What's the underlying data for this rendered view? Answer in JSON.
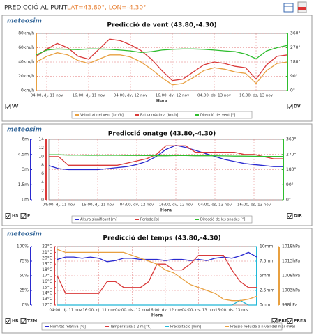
{
  "header": {
    "title": "PREDICCIÓ AL PUNT",
    "coords": "LAT=43.80°, LON=-4.30°"
  },
  "chart_data": [
    {
      "type": "line",
      "brand": "meteosim",
      "title": "Predicció de vent (43.80,-4.30)",
      "xlabel": "Hora",
      "grid": true,
      "toggles": {
        "left": [
          "VV"
        ],
        "right": [
          "DV"
        ]
      },
      "categories": [
        null,
        "04:00, dj, 11 nov",
        null,
        null,
        null,
        "16:00, dj, 11 nov",
        null,
        null,
        null,
        "04:00, dv, 12 nov",
        null,
        null,
        null,
        "16:00, dv, 12 nov",
        null,
        null,
        null,
        "04:00, ds, 13 nov",
        null,
        null,
        null,
        "16:00, ds, 13 nov",
        null,
        null,
        null
      ],
      "axes": [
        {
          "side": "left",
          "color": "#e8a040",
          "lim": [
            0,
            80
          ],
          "ticks": [
            {
              "value": 0,
              "label": "0km/h"
            },
            {
              "value": 20,
              "label": "20km/h"
            },
            {
              "value": 40,
              "label": "40km/h"
            },
            {
              "value": 60,
              "label": "60km/h"
            },
            {
              "value": 80,
              "label": "80km/h"
            }
          ]
        },
        {
          "side": "right",
          "color": "#2ebd2e",
          "lim": [
            0,
            360
          ],
          "ticks": [
            {
              "value": 0,
              "label": "0°"
            },
            {
              "value": 90,
              "label": "90°"
            },
            {
              "value": 180,
              "label": "180°"
            },
            {
              "value": 270,
              "label": "270°"
            },
            {
              "value": 360,
              "label": "360°"
            }
          ]
        }
      ],
      "series": [
        {
          "name": "Velocitat del vent [km/h]",
          "color": "#e8a040",
          "axis": 0,
          "values": [
            40,
            48,
            53,
            50,
            42,
            38,
            44,
            50,
            50,
            47,
            40,
            30,
            18,
            8,
            10,
            18,
            28,
            32,
            30,
            26,
            24,
            10,
            28,
            38,
            40
          ]
        },
        {
          "name": "Ratxa màxima [km/h]",
          "color": "#d93a3a",
          "axis": 0,
          "values": [
            48,
            58,
            66,
            60,
            48,
            44,
            58,
            72,
            70,
            64,
            56,
            44,
            28,
            14,
            16,
            26,
            36,
            40,
            38,
            34,
            32,
            16,
            36,
            48,
            50
          ]
        },
        {
          "name": "Direcció del vent [°]",
          "color": "#2ebd2e",
          "axis": 1,
          "values": [
            225,
            255,
            262,
            260,
            258,
            262,
            262,
            260,
            255,
            250,
            240,
            245,
            255,
            260,
            262,
            262,
            260,
            255,
            250,
            245,
            230,
            200,
            250,
            270,
            285
          ]
        }
      ]
    },
    {
      "type": "line",
      "brand": "meteosim",
      "title": "Predicció onatge (43.80,-4.30)",
      "xlabel": "Hora",
      "grid": true,
      "toggles": {
        "left": [
          "HS",
          "P"
        ],
        "right": [
          "DIR"
        ]
      },
      "categories": [
        null,
        "04:00, dj, 11 nov",
        null,
        null,
        null,
        "16:00, dj, 11 nov",
        null,
        null,
        null,
        "04:00, dv, 12 nov",
        null,
        null,
        null,
        "16:00, dv, 12 nov",
        null,
        null,
        null,
        "04:00, ds, 13 nov",
        null,
        null,
        null,
        "16:00, ds, 13 nov",
        null,
        null,
        null
      ],
      "axes": [
        {
          "side": "left",
          "color": "#2a2ad0",
          "lim": [
            0,
            6
          ],
          "ticks": [
            {
              "value": 0,
              "label": "0m"
            },
            {
              "value": 1.5,
              "label": "1.5m"
            },
            {
              "value": 3,
              "label": "3m"
            },
            {
              "value": 4.5,
              "label": "4.5m"
            },
            {
              "value": 6,
              "label": "6m"
            }
          ]
        },
        {
          "side": "left",
          "color": "#d93a3a",
          "lim": [
            0,
            14
          ],
          "ticks": [
            0,
            2,
            4,
            6,
            8,
            10,
            12,
            14
          ]
        },
        {
          "side": "right",
          "color": "#2ebd2e",
          "lim": [
            0,
            360
          ],
          "ticks": [
            {
              "value": 0,
              "label": "0°"
            },
            {
              "value": 90,
              "label": "90°"
            },
            {
              "value": 180,
              "label": "180°"
            },
            {
              "value": 270,
              "label": "270°"
            },
            {
              "value": 360,
              "label": "360°"
            }
          ]
        }
      ],
      "series": [
        {
          "name": "Altura significant [m]",
          "color": "#2a2ad0",
          "axis": 0,
          "values": [
            3.4,
            3.1,
            3.0,
            3.0,
            3.0,
            3.0,
            3.1,
            3.2,
            3.3,
            3.5,
            3.8,
            4.3,
            5.0,
            5.4,
            5.2,
            4.9,
            4.6,
            4.3,
            4.0,
            3.8,
            3.6,
            3.5,
            3.4,
            3.3,
            3.3
          ]
        },
        {
          "name": "Període [s]",
          "color": "#d93a3a",
          "axis": 1,
          "values": [
            10,
            10,
            8,
            8,
            8,
            8,
            8,
            8,
            8.5,
            9,
            9.5,
            10.5,
            12.5,
            12.5,
            12.5,
            11,
            11,
            11,
            11,
            11,
            10.5,
            10.5,
            10,
            9.5,
            9.5
          ]
        },
        {
          "name": "Direcció de les onades [°]",
          "color": "#2ebd2e",
          "axis": 2,
          "values": [
            268,
            268,
            266,
            266,
            265,
            265,
            265,
            265,
            264,
            264,
            263,
            262,
            262,
            263,
            263,
            262,
            262,
            262,
            261,
            260,
            260,
            259,
            258,
            258,
            258
          ]
        }
      ]
    },
    {
      "type": "line",
      "brand": "meteosim",
      "title": "Predicció del temps (43.80,-4.30)",
      "xlabel": "Hora",
      "grid": true,
      "toggles": {
        "left": [
          "HR",
          "T2M"
        ],
        "right": [
          "PREC",
          "PRES"
        ]
      },
      "categories": [
        null,
        "04:00, dj, 11 nov",
        null,
        null,
        null,
        "16:00, dj, 11 nov",
        null,
        null,
        null,
        "04:00, dv, 12 nov",
        null,
        null,
        null,
        "16:00, dv, 12 nov",
        null,
        null,
        null,
        "04:00, ds, 13 nov",
        null,
        null,
        null,
        "16:00, ds, 13 nov",
        null,
        null,
        null
      ],
      "axes": [
        {
          "side": "left",
          "color": "#2a2ad0",
          "lim": [
            0,
            100
          ],
          "ticks": [
            {
              "value": 0,
              "label": "0%"
            },
            {
              "value": 25,
              "label": "25%"
            },
            {
              "value": 50,
              "label": "50%"
            },
            {
              "value": 75,
              "label": "75%"
            },
            {
              "value": 100,
              "label": "100%"
            }
          ]
        },
        {
          "side": "left",
          "color": "#d93a3a",
          "lim": [
            12,
            22
          ],
          "ticks": [
            {
              "value": 12,
              "label": "12°C"
            },
            {
              "value": 13,
              "label": "13°C"
            },
            {
              "value": 14,
              "label": "14°C"
            },
            {
              "value": 15,
              "label": "15°C"
            },
            {
              "value": 16,
              "label": "16°C"
            },
            {
              "value": 17,
              "label": "17°C"
            },
            {
              "value": 18,
              "label": "18°C"
            },
            {
              "value": 19,
              "label": "19°C"
            },
            {
              "value": 20,
              "label": "20°C"
            },
            {
              "value": 21,
              "label": "21°C"
            },
            {
              "value": 22,
              "label": "22°C"
            }
          ]
        },
        {
          "side": "right",
          "color": "#22b8d8",
          "lim": [
            0,
            10
          ],
          "ticks": [
            {
              "value": 0,
              "label": "0mm"
            },
            {
              "value": 2.5,
              "label": "2.5mm"
            },
            {
              "value": 5,
              "label": "5mm"
            },
            {
              "value": 7.5,
              "label": "7.5mm"
            },
            {
              "value": 10,
              "label": "10mm"
            }
          ]
        },
        {
          "side": "right",
          "color": "#e8a040",
          "lim": [
            998,
            1018
          ],
          "ticks": [
            {
              "value": 998,
              "label": "998hPa"
            },
            {
              "value": 1003,
              "label": "1003hPa"
            },
            {
              "value": 1008,
              "label": "1008hPa"
            },
            {
              "value": 1013,
              "label": "1013hPa"
            },
            {
              "value": 1018,
              "label": "1018hPa"
            }
          ]
        }
      ],
      "series": [
        {
          "name": "Humitat relativa [%]",
          "color": "#2a2ad0",
          "axis": 0,
          "values": [
            78,
            82,
            82,
            80,
            82,
            80,
            74,
            76,
            80,
            80,
            78,
            78,
            78,
            76,
            78,
            78,
            76,
            78,
            76,
            80,
            82,
            80,
            84,
            90,
            82
          ]
        },
        {
          "name": "Temperatura a 2 m [°C]",
          "color": "#d93a3a",
          "axis": 1,
          "values": [
            17,
            14,
            14,
            14,
            14,
            14,
            16,
            16,
            15,
            15,
            15,
            16,
            19,
            19,
            18,
            18,
            19,
            20.5,
            20.5,
            20.5,
            20.5,
            18,
            16,
            15,
            15
          ]
        },
        {
          "name": "Precipitació [mm]",
          "color": "#22b8d8",
          "axis": 2,
          "values": [
            0,
            0,
            0,
            0,
            0,
            0,
            0,
            0,
            0,
            0,
            0,
            0,
            0,
            0,
            0,
            0,
            0,
            0,
            0,
            0,
            0,
            0,
            0.8,
            0,
            0
          ]
        },
        {
          "name": "Pressió reduïda a nivell del mar (hPa)",
          "color": "#e8a040",
          "axis": 3,
          "values": [
            1017,
            1016,
            1016,
            1016,
            1016,
            1016,
            1016,
            1016,
            1016,
            1015,
            1014,
            1013,
            1012,
            1010,
            1009,
            1007,
            1005,
            1004,
            1003,
            1002,
            1000,
            999.5,
            999.5,
            1000,
            1001
          ]
        }
      ]
    }
  ]
}
